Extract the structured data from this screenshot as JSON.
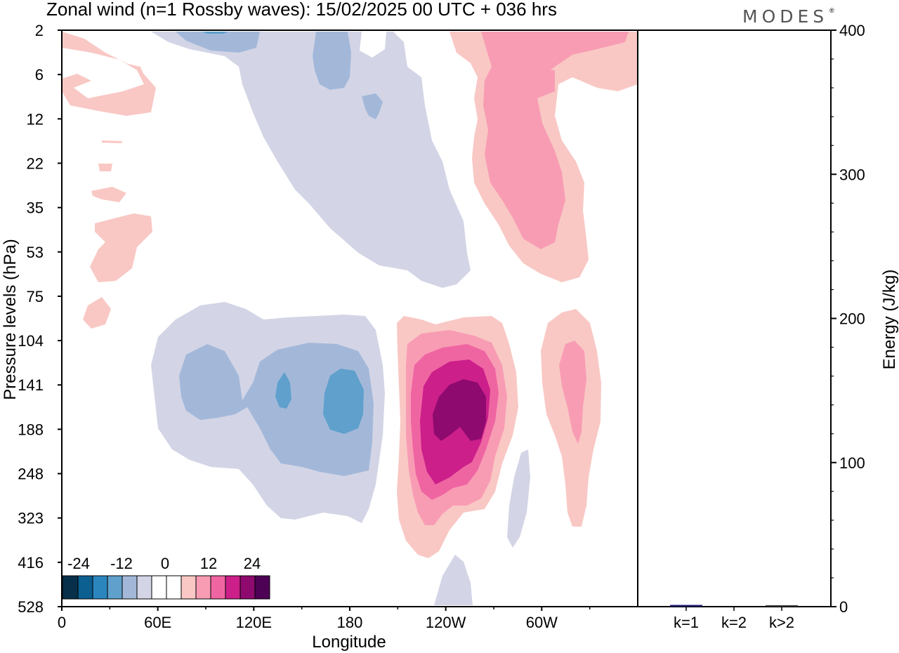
{
  "header": {
    "title": "Zonal wind (n=1 Rossby waves):  15/02/2025  00 UTC  + 036 hrs",
    "logo": "MODES",
    "logo_mark": "®"
  },
  "colors": {
    "neg4": "#08304a",
    "neg3": "#0c5f91",
    "neg2": "#2b86be",
    "neg1": "#5fa0cc",
    "neg05": "#a3b8d9",
    "neg0": "#d3d5e6",
    "zero": "#ffffff",
    "pos0": "#f9c8c4",
    "pos05": "#f89cb4",
    "pos1": "#ef65a2",
    "pos2": "#cc1f8a",
    "pos3": "#8e0a6e",
    "pos4": "#4e0256"
  },
  "chart_data": [
    {
      "type": "heatmap",
      "title": "Zonal wind (n=1 Rossby waves):  15/02/2025  00 UTC  + 036 hrs",
      "xlabel": "Longitude",
      "ylabel": "Pressure levels (hPa)",
      "x_ticks": [
        "0",
        "60E",
        "120E",
        "180",
        "120W",
        "60W"
      ],
      "x_range": [
        0,
        360
      ],
      "y_ticks": [
        "2",
        "6",
        "12",
        "22",
        "35",
        "53",
        "75",
        "104",
        "141",
        "188",
        "248",
        "323",
        "416",
        "528"
      ],
      "colorbar": {
        "labels": [
          "-24",
          "-12",
          "0",
          "12",
          "24"
        ],
        "levels": [
          -30,
          -24,
          -18,
          -12,
          -6,
          -3,
          0,
          3,
          6,
          12,
          18,
          24,
          30
        ]
      },
      "features": [
        {
          "name": "upper negative band",
          "x": [
            55,
            255
          ],
          "y": [
            "2",
            "75"
          ],
          "peak": -6
        },
        {
          "name": "upper negative core near 2 hPa",
          "x": [
            75,
            115
          ],
          "y": [
            "2",
            "6"
          ],
          "peak": -6
        },
        {
          "name": "upper positive band",
          "x": [
            245,
            360
          ],
          "y": [
            "2",
            "75"
          ],
          "peak": 12
        },
        {
          "name": "lower negative region",
          "x": [
            55,
            200
          ],
          "y": [
            "75",
            "416"
          ],
          "peak": -12
        },
        {
          "name": "lower positive core",
          "x": [
            210,
            285
          ],
          "y": [
            "75",
            "416"
          ],
          "peak": 30
        },
        {
          "name": "positive region near 60W",
          "x": [
            300,
            340
          ],
          "y": [
            "75",
            "323"
          ],
          "peak": 12
        },
        {
          "name": "weak positive patches near 0-60E",
          "x": [
            0,
            55
          ],
          "y": [
            "2",
            "75"
          ],
          "peak": 3
        }
      ]
    },
    {
      "type": "bar",
      "categories": [
        "k=1",
        "k=2",
        "k>2"
      ],
      "values": [
        1.2,
        0.0,
        0.6
      ],
      "ylabel": "Energy (J/kg)",
      "ylim": [
        0,
        400
      ],
      "y_ticks": [
        "0",
        "100",
        "200",
        "300",
        "400"
      ]
    }
  ]
}
